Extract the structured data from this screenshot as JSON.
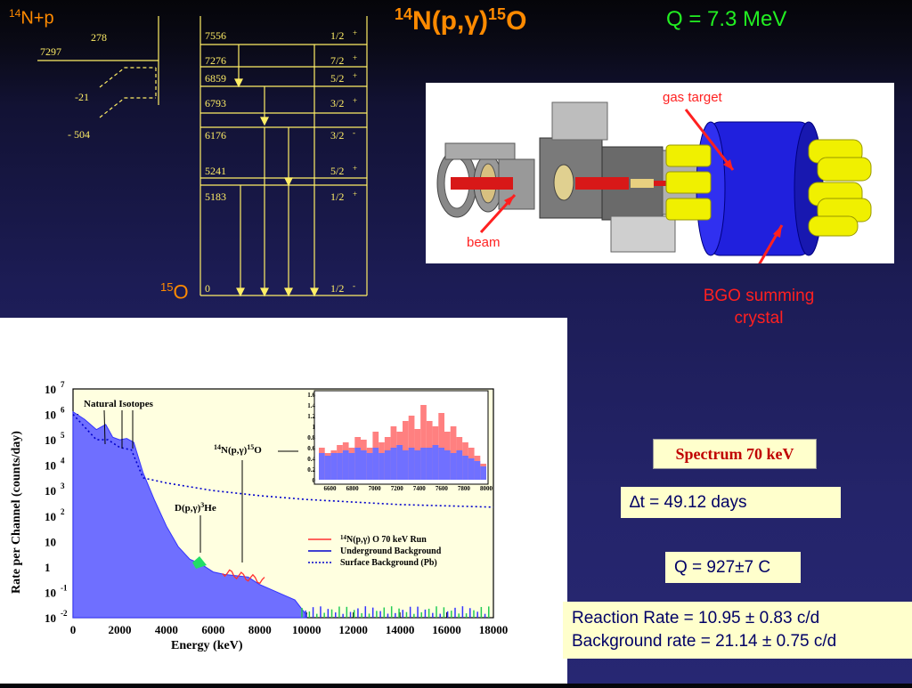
{
  "header": {
    "title_a": "14",
    "title_b": "N(p,γ)",
    "title_c": "15",
    "title_d": "O",
    "q_value": "Q = 7.3 MeV"
  },
  "level_scheme": {
    "reactants_a": "14",
    "reactants_b": "N+p",
    "product_a": "15",
    "product_b": "O",
    "left_values": [
      "278",
      "7297",
      "-21",
      "- 504"
    ],
    "levels": [
      {
        "energy": "7556",
        "spin": "1/2",
        "parity": "+"
      },
      {
        "energy": "7276",
        "spin": "7/2",
        "parity": "+"
      },
      {
        "energy": "6859",
        "spin": "5/2",
        "parity": "+"
      },
      {
        "energy": "6793",
        "spin": "3/2",
        "parity": "+"
      },
      {
        "energy": "6176",
        "spin": "3/2",
        "parity": "-"
      },
      {
        "energy": "5241",
        "spin": "5/2",
        "parity": "+"
      },
      {
        "energy": "5183",
        "spin": "1/2",
        "parity": "+"
      },
      {
        "energy": "0",
        "spin": "1/2",
        "parity": "-"
      }
    ]
  },
  "setup_image": {
    "gas_target_label": "gas target",
    "beam_label": "beam",
    "bgo_label_line1": "BGO summing",
    "bgo_label_line2": "crystal"
  },
  "chart_data": {
    "type": "line",
    "title": "",
    "xlabel": "Energy (keV)",
    "ylabel": "Rate per Channel (counts/day)",
    "xlim": [
      0,
      18000
    ],
    "ylim": [
      -2,
      7
    ],
    "log_y": true,
    "x_ticks": [
      "0",
      "2000",
      "4000",
      "6000",
      "8000",
      "10000",
      "12000",
      "14000",
      "16000",
      "18000"
    ],
    "y_ticks": [
      {
        "exp": "7",
        "label": "10"
      },
      {
        "exp": "6",
        "label": "10"
      },
      {
        "exp": "5",
        "label": "10"
      },
      {
        "exp": "4",
        "label": "10"
      },
      {
        "exp": "3",
        "label": "10"
      },
      {
        "exp": "2",
        "label": "10"
      },
      {
        "exp": "",
        "label": "10"
      },
      {
        "exp": "",
        "label": "1"
      },
      {
        "exp": "-1",
        "label": "10"
      },
      {
        "exp": "-2",
        "label": "10"
      }
    ],
    "legend": {
      "run_label": "N(p,γ) O 70 keV Run",
      "run_a": "14",
      "run_b": "15",
      "underground_label": "Underground Background",
      "surface_label": "Surface Background (Pb)"
    },
    "annotations": {
      "natural_isotopes": "Natural Isotopes",
      "reaction_a": "14",
      "reaction_b": "N(p,γ)",
      "reaction_c": "15",
      "reaction_d": "O",
      "dpg_a": "D(p,γ)",
      "dpg_b": "3",
      "dpg_c": "He"
    },
    "series": [
      {
        "name": "Underground Background",
        "color": "#3333ff",
        "x": [
          0,
          500,
          1000,
          1400,
          1700,
          2000,
          2300,
          2600,
          3000,
          3500,
          4000,
          4500,
          5000,
          5500,
          6000,
          6500,
          7000,
          7500,
          8000,
          8500,
          9000,
          9500,
          10000
        ],
        "y": [
          6.1,
          5.8,
          5.4,
          5.6,
          5.1,
          5.0,
          5.05,
          4.9,
          3.7,
          2.6,
          1.6,
          0.8,
          0.3,
          0.1,
          -0.2,
          -0.3,
          -0.35,
          -0.4,
          -0.7,
          -0.9,
          -1.1,
          -1.3,
          -1.9
        ]
      },
      {
        "name": "Surface Background (Pb)",
        "color": "#0000cc",
        "x": [
          0,
          500,
          1000,
          1500,
          2000,
          2500,
          3000,
          4000,
          5000,
          6000,
          7000,
          8000,
          10000,
          12000,
          14000,
          16000,
          18000
        ],
        "y": [
          6.0,
          5.5,
          5.0,
          5.0,
          4.7,
          4.6,
          3.5,
          3.3,
          3.15,
          3.0,
          2.9,
          2.8,
          2.65,
          2.55,
          2.45,
          2.4,
          2.35
        ]
      }
    ],
    "inset": {
      "x_ticks": [
        "6600",
        "6800",
        "7000",
        "7200",
        "7400",
        "7600",
        "7800",
        "8000"
      ],
      "y_ticks": [
        "1.6",
        "1.4",
        "1.2",
        "1",
        "0.8",
        "0.6",
        "0.4",
        "0.2",
        "0"
      ],
      "xlim": [
        6500,
        8000
      ],
      "ylim": [
        0,
        1.6
      ],
      "run_values": [
        0.6,
        0.5,
        0.55,
        0.65,
        0.7,
        0.6,
        0.8,
        0.75,
        0.6,
        0.9,
        0.7,
        0.8,
        1.0,
        0.9,
        1.1,
        1.2,
        0.95,
        1.4,
        1.1,
        1.0,
        1.25,
        0.9,
        1.0,
        0.8,
        0.7,
        0.6,
        0.45,
        0.3
      ],
      "background_values": [
        0.5,
        0.45,
        0.5,
        0.5,
        0.55,
        0.5,
        0.6,
        0.55,
        0.5,
        0.6,
        0.5,
        0.55,
        0.6,
        0.65,
        0.55,
        0.6,
        0.55,
        0.6,
        0.6,
        0.65,
        0.6,
        0.55,
        0.5,
        0.55,
        0.45,
        0.4,
        0.35,
        0.25
      ]
    }
  },
  "info_boxes": {
    "spectrum_label": "Spectrum 70 keV",
    "delta_t": "∆t = 49.12 days",
    "charge": "Q = 927±7 C",
    "reaction_rate": "Reaction Rate = 10.95 ± 0.83 c/d",
    "background_rate": "Background rate = 21.14 ± 0.75 c/d"
  },
  "colors": {
    "accent_orange": "#ff8a00",
    "q_green": "#22ee22",
    "callout_red": "#ff2222",
    "box_fill": "#ffffcc",
    "scheme_line": "#ffee66"
  }
}
